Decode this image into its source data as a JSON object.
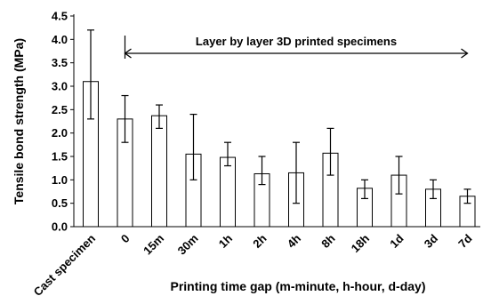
{
  "chart_data": {
    "type": "bar",
    "categories": [
      "Cast specimen",
      "0",
      "15m",
      "30m",
      "1h",
      "2h",
      "4h",
      "8h",
      "18h",
      "1d",
      "3d",
      "7d"
    ],
    "values": [
      3.1,
      2.3,
      2.37,
      1.55,
      1.48,
      1.13,
      1.15,
      1.57,
      0.82,
      1.1,
      0.8,
      0.65
    ],
    "error_high": [
      4.2,
      2.8,
      2.6,
      2.4,
      1.8,
      1.5,
      1.8,
      2.1,
      1.0,
      1.5,
      1.0,
      0.8
    ],
    "error_low": [
      2.3,
      1.8,
      2.1,
      1.0,
      1.3,
      0.9,
      0.5,
      1.1,
      0.6,
      0.7,
      0.6,
      0.5
    ],
    "title": "",
    "xlabel": "Printing time gap (m-minute, h-hour, d-day)",
    "ylabel": "Tensile bond strength (MPa)",
    "ylim": [
      0,
      4.5
    ],
    "yticks": [
      "0.0",
      "0.5",
      "1.0",
      "1.5",
      "2.0",
      "2.5",
      "3.0",
      "3.5",
      "4.0",
      "4.5"
    ],
    "grid": false,
    "annotation": {
      "text": "Layer by layer 3D printed specimens",
      "from_category": "0",
      "to_category": "7d"
    }
  }
}
